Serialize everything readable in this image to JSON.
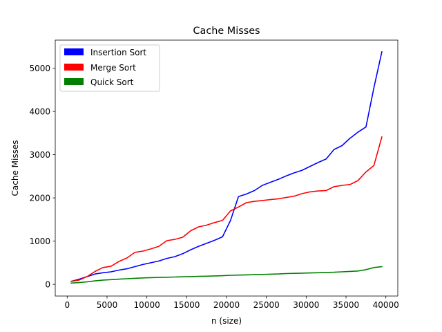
{
  "chart_data": {
    "type": "line",
    "title": "Cache Misses",
    "xlabel": "n (size)",
    "ylabel": "Cache Misses",
    "xlim": [
      -1500,
      41500
    ],
    "ylim": [
      -270,
      5650
    ],
    "xticks": [
      0,
      5000,
      10000,
      15000,
      20000,
      25000,
      30000,
      35000,
      40000
    ],
    "xtick_labels": [
      "0",
      "5000",
      "10000",
      "15000",
      "20000",
      "25000",
      "30000",
      "35000",
      "40000"
    ],
    "yticks": [
      0,
      1000,
      2000,
      3000,
      4000,
      5000
    ],
    "ytick_labels": [
      "0",
      "1000",
      "2000",
      "3000",
      "4000",
      "5000"
    ],
    "grid": false,
    "legend": "top-left",
    "x": [
      500,
      1500,
      2500,
      3500,
      4500,
      5500,
      6500,
      7500,
      8500,
      9500,
      10500,
      11500,
      12500,
      13500,
      14500,
      15500,
      16500,
      17500,
      18500,
      19500,
      20500,
      21500,
      22500,
      23500,
      24500,
      25500,
      26500,
      27500,
      28500,
      29500,
      30500,
      31500,
      32500,
      33500,
      34500,
      35500,
      36500,
      37500,
      38500,
      39500
    ],
    "series": [
      {
        "name": "Insertion Sort",
        "color": "#0000ff",
        "values": [
          70,
          120,
          180,
          240,
          270,
          290,
          330,
          360,
          410,
          460,
          500,
          540,
          600,
          640,
          710,
          800,
          880,
          950,
          1020,
          1100,
          1480,
          2030,
          2090,
          2170,
          2290,
          2360,
          2430,
          2510,
          2580,
          2640,
          2730,
          2820,
          2900,
          3120,
          3210,
          3380,
          3520,
          3640,
          4550,
          5380
        ]
      },
      {
        "name": "Merge Sort",
        "color": "#ff0000",
        "values": [
          70,
          100,
          180,
          300,
          390,
          420,
          530,
          610,
          740,
          770,
          820,
          880,
          1010,
          1040,
          1090,
          1240,
          1330,
          1370,
          1430,
          1480,
          1700,
          1790,
          1890,
          1920,
          1940,
          1960,
          1980,
          2010,
          2040,
          2100,
          2140,
          2160,
          2170,
          2260,
          2290,
          2310,
          2400,
          2600,
          2750,
          3410
        ]
      },
      {
        "name": "Quick Sort",
        "color": "#008000",
        "values": [
          30,
          40,
          60,
          80,
          100,
          110,
          120,
          130,
          140,
          150,
          155,
          160,
          165,
          170,
          175,
          180,
          185,
          190,
          195,
          200,
          210,
          215,
          220,
          225,
          230,
          235,
          240,
          250,
          255,
          260,
          265,
          270,
          275,
          280,
          290,
          300,
          310,
          340,
          390,
          410
        ]
      }
    ]
  }
}
